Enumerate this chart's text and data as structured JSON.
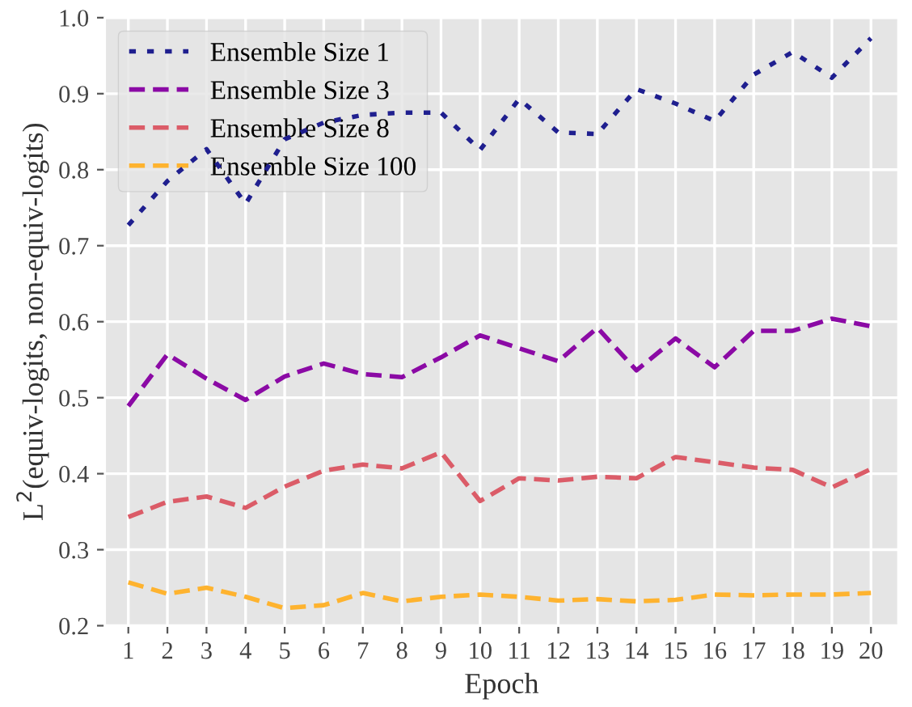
{
  "chart_data": {
    "type": "line",
    "xlabel": "Epoch",
    "ylabel": "L$^{2}$(equiv-logits, non-equiv-logits)",
    "x": [
      1,
      2,
      3,
      4,
      5,
      6,
      7,
      8,
      9,
      10,
      11,
      12,
      13,
      14,
      15,
      16,
      17,
      18,
      19,
      20
    ],
    "series": [
      {
        "name": "Ensemble Size 1",
        "color": "#1f1f8f",
        "line_style": "dotted",
        "values": [
          0.727,
          0.785,
          0.827,
          0.755,
          0.84,
          0.862,
          0.872,
          0.875,
          0.875,
          0.826,
          0.893,
          0.849,
          0.847,
          0.906,
          0.887,
          0.864,
          0.925,
          0.955,
          0.921,
          0.973
        ]
      },
      {
        "name": "Ensemble Size 3",
        "color": "#8b0aa5",
        "line_style": "dashed",
        "values": [
          0.489,
          0.557,
          0.525,
          0.497,
          0.528,
          0.545,
          0.531,
          0.527,
          0.553,
          0.582,
          0.565,
          0.548,
          0.592,
          0.536,
          0.578,
          0.54,
          0.588,
          0.588,
          0.604,
          0.594
        ]
      },
      {
        "name": "Ensemble Size 8",
        "color": "#db5c68",
        "line_style": "dashed",
        "values": [
          0.343,
          0.363,
          0.37,
          0.355,
          0.383,
          0.404,
          0.412,
          0.407,
          0.428,
          0.364,
          0.394,
          0.391,
          0.396,
          0.394,
          0.422,
          0.415,
          0.408,
          0.405,
          0.382,
          0.406
        ]
      },
      {
        "name": "Ensemble Size 100",
        "color": "#feb32f",
        "line_style": "dashed",
        "values": [
          0.257,
          0.242,
          0.25,
          0.238,
          0.223,
          0.227,
          0.243,
          0.232,
          0.238,
          0.241,
          0.238,
          0.233,
          0.235,
          0.232,
          0.234,
          0.241,
          0.24,
          0.241,
          0.241,
          0.243
        ]
      }
    ],
    "xlim": [
      0.4,
      20.7
    ],
    "ylim": [
      0.2,
      1.0
    ],
    "yticks": [
      0.2,
      0.3,
      0.4,
      0.5,
      0.6,
      0.7,
      0.8,
      0.9,
      {
        "value": 1.0,
        "label": "1.0"
      }
    ],
    "xticks": [
      1,
      2,
      3,
      4,
      5,
      6,
      7,
      8,
      9,
      10,
      11,
      12,
      13,
      14,
      15,
      16,
      17,
      18,
      19,
      20
    ],
    "grid": true,
    "legend": "top left"
  }
}
